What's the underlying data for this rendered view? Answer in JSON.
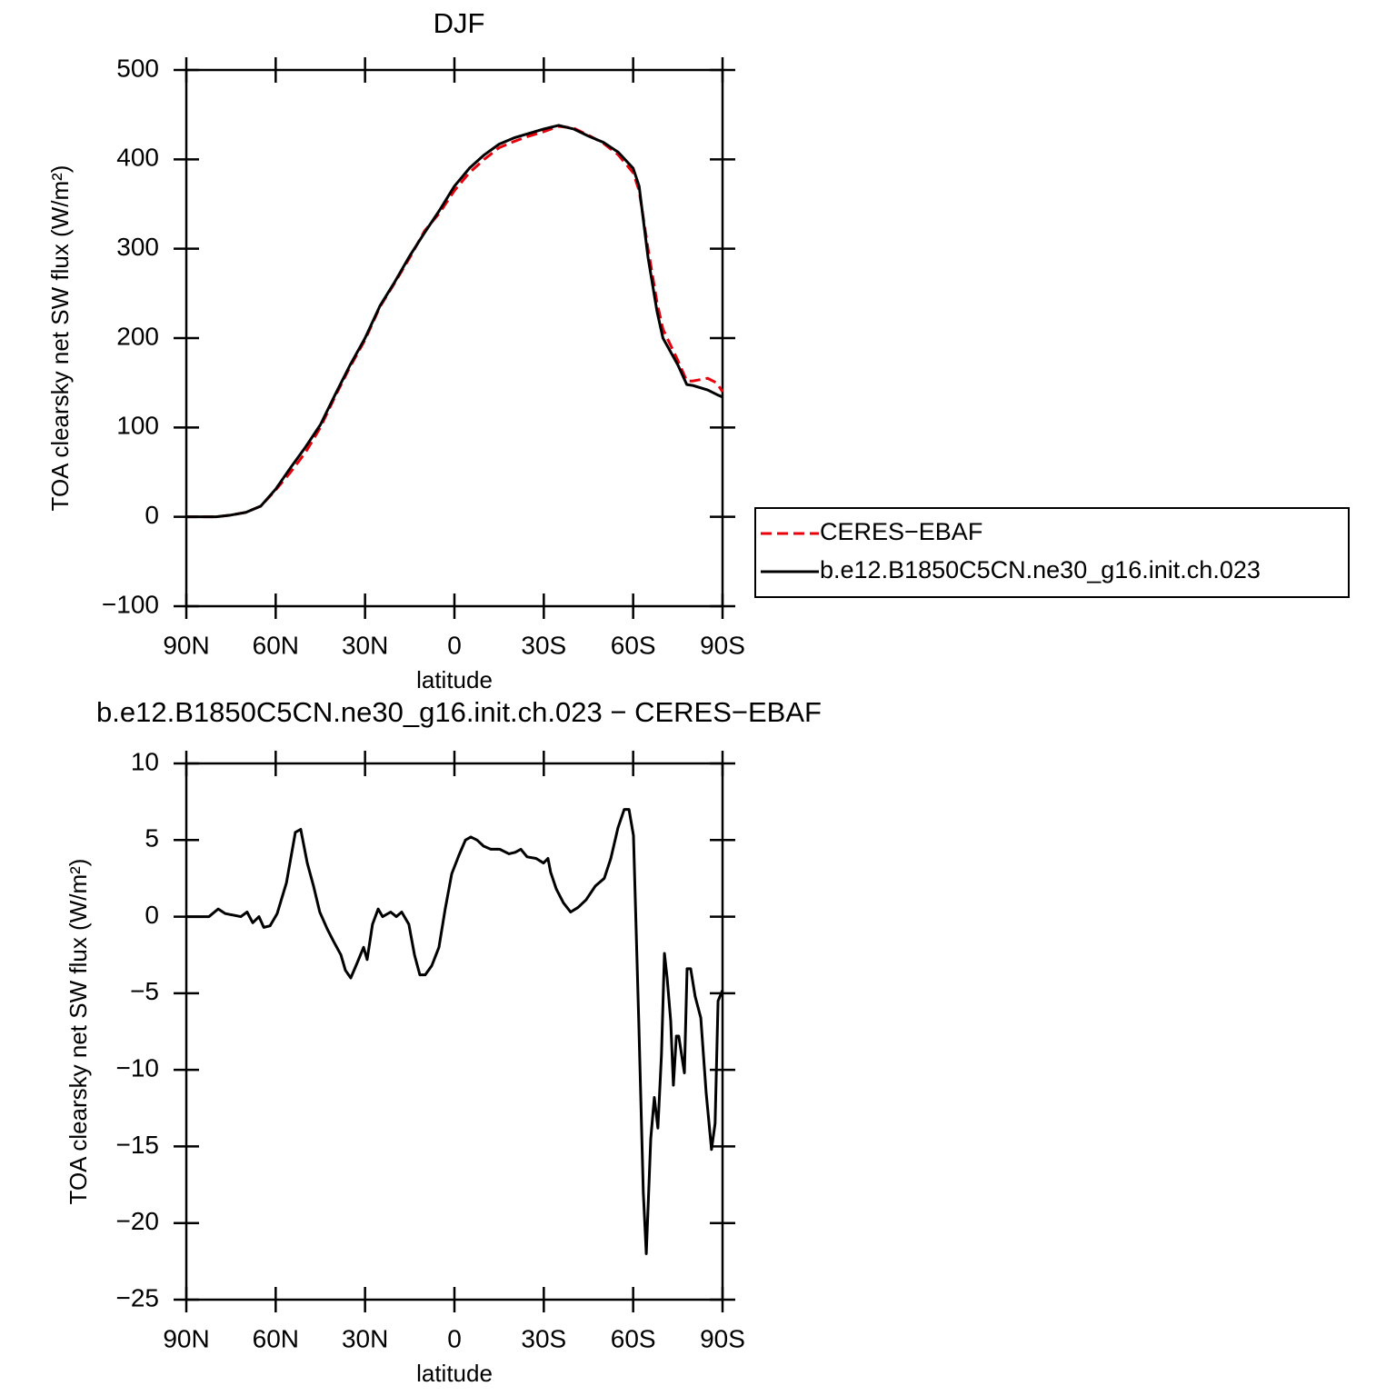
{
  "chart_data": [
    {
      "type": "line",
      "title": "DJF",
      "xlabel": "latitude",
      "ylabel": "TOA clearsky net SW flux (W/m²)",
      "xlim": [
        90,
        -90
      ],
      "xticks": [
        {
          "value": 90,
          "label": "90N"
        },
        {
          "value": 60,
          "label": "60N"
        },
        {
          "value": 30,
          "label": "30N"
        },
        0,
        {
          "value": -30,
          "label": "30S"
        },
        {
          "value": -60,
          "label": "60S"
        },
        {
          "value": -90,
          "label": "90S"
        }
      ],
      "ylim": [
        -100,
        500
      ],
      "yticks": [
        {
          "value": -100,
          "label": "−100"
        },
        0,
        100,
        200,
        300,
        400,
        500
      ],
      "legend": "right",
      "x": [
        90,
        85,
        80,
        75,
        70,
        65,
        60,
        55,
        50,
        45,
        40,
        35,
        30,
        25,
        20,
        15,
        10,
        5,
        0,
        -5,
        -10,
        -15,
        -20,
        -25,
        -30,
        -35,
        -40,
        -45,
        -50,
        -55,
        -60,
        -62,
        -65,
        -68,
        -70,
        -75,
        -78,
        -80,
        -85,
        -88,
        -90
      ],
      "series": [
        {
          "name": "CERES−EBAF",
          "color": "#e8000b",
          "dash": true,
          "values": [
            0,
            0,
            0,
            2,
            5,
            12,
            30,
            50,
            72,
            100,
            135,
            168,
            198,
            235,
            262,
            290,
            320,
            340,
            365,
            385,
            400,
            413,
            420,
            426,
            431,
            437,
            435,
            427,
            418,
            405,
            385,
            365,
            300,
            240,
            210,
            175,
            152,
            152,
            155,
            150,
            140
          ]
        },
        {
          "name": "b.e12.B1850C5CN.ne30_g16.init.ch.023",
          "color": "#000000",
          "dash": false,
          "values": [
            0,
            0,
            0,
            2,
            5,
            12,
            31,
            55,
            78,
            103,
            137,
            170,
            200,
            236,
            263,
            292,
            318,
            343,
            370,
            390,
            405,
            417,
            424,
            429,
            434,
            438,
            434,
            426,
            419,
            408,
            390,
            370,
            290,
            230,
            200,
            170,
            148,
            147,
            142,
            137,
            134
          ]
        }
      ]
    },
    {
      "type": "line",
      "title": "b.e12.B1850C5CN.ne30_g16.init.ch.023 − CERES−EBAF",
      "xlabel": "latitude",
      "ylabel": "TOA clearsky net SW flux (W/m²)",
      "xlim": [
        90,
        -90
      ],
      "xticks": [
        {
          "value": 90,
          "label": "90N"
        },
        {
          "value": 60,
          "label": "60N"
        },
        {
          "value": 30,
          "label": "30N"
        },
        0,
        {
          "value": -30,
          "label": "30S"
        },
        {
          "value": -60,
          "label": "60S"
        },
        {
          "value": -90,
          "label": "90S"
        }
      ],
      "ylim": [
        -25,
        10
      ],
      "yticks": [
        {
          "value": -25,
          "label": "−25"
        },
        {
          "value": -20,
          "label": "−20"
        },
        {
          "value": -15,
          "label": "−15"
        },
        {
          "value": -10,
          "label": "−10"
        },
        {
          "value": -5,
          "label": "−5"
        },
        0,
        5,
        10
      ],
      "x": [
        90,
        82.4,
        79.3,
        76.9,
        71.7,
        69.6,
        67.7,
        65.6,
        64,
        61.9,
        59.5,
        56.4,
        53.4,
        51.6,
        49.4,
        47.3,
        45.2,
        42.7,
        40.6,
        38.1,
        36.6,
        34.8,
        32.6,
        30.5,
        29.3,
        27.5,
        25.6,
        24.1,
        21.4,
        19.5,
        17.7,
        15.3,
        13.4,
        11.6,
        9.8,
        7.6,
        5.2,
        3.1,
        0.9,
        -1.5,
        -3.7,
        -5.5,
        -7.6,
        -9.8,
        -12.2,
        -15.2,
        -18.3,
        -20.4,
        -22.3,
        -24.4,
        -27.4,
        -29.9,
        -31.4,
        -32.3,
        -34.2,
        -36.6,
        -39,
        -41.5,
        -44.2,
        -47.3,
        -50.3,
        -52.5,
        -54.9,
        -57,
        -58.6,
        -60.1,
        -61.9,
        -63.4,
        -64.4,
        -65.9,
        -67.1,
        -68.3,
        -69.5,
        -70.5,
        -71.4,
        -72.6,
        -73.5,
        -74.5,
        -75.3,
        -77.2,
        -78.1,
        -79.3,
        -80.8,
        -82.7,
        -84.5,
        -86.3,
        -87.5,
        -88.5,
        -90
      ],
      "series": [
        {
          "name": "b.e12.B1850C5CN.ne30_g16.init.ch.023 − CERES−EBAF",
          "color": "#000000",
          "dash": false,
          "values": [
            0,
            0,
            0.5,
            0.2,
            0,
            0.3,
            -0.4,
            0,
            -0.7,
            -0.6,
            0.2,
            2.2,
            5.5,
            5.7,
            3.5,
            2,
            0.3,
            -0.8,
            -1.6,
            -2.5,
            -3.5,
            -4,
            -3,
            -2,
            -2.8,
            -0.5,
            0.5,
            0,
            0.3,
            0,
            0.3,
            -0.5,
            -2.5,
            -3.8,
            -3.8,
            -3.2,
            -2,
            0.5,
            2.8,
            4,
            5,
            5.2,
            5,
            4.6,
            4.4,
            4.4,
            4.1,
            4.2,
            4.4,
            3.9,
            3.8,
            3.5,
            3.8,
            2.9,
            1.8,
            0.9,
            0.3,
            0.6,
            1.1,
            2,
            2.5,
            3.8,
            5.8,
            7,
            7,
            5.3,
            -7,
            -18,
            -22,
            -14.5,
            -11.8,
            -13.8,
            -9,
            -2.4,
            -4,
            -6.8,
            -11,
            -7.8,
            -7.8,
            -10.2,
            -3.4,
            -3.4,
            -5.2,
            -6.6,
            -11.5,
            -15.2,
            -13.5,
            -5.5,
            -4.8
          ]
        }
      ]
    }
  ]
}
